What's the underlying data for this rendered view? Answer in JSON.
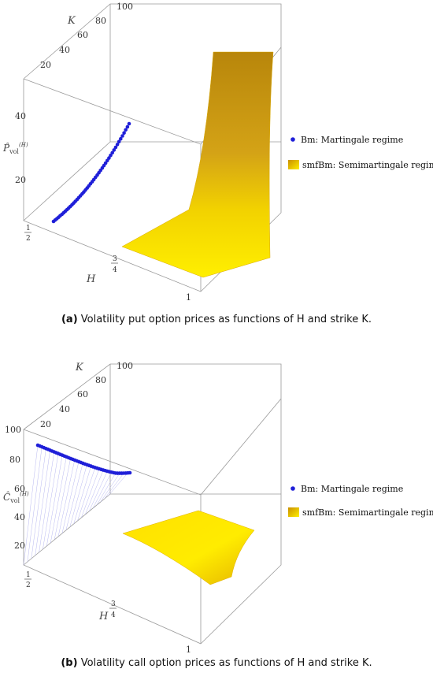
{
  "legend": {
    "bm": "Bm: Martingale regime",
    "smfbm": "smfBm: Semimartingale regime"
  },
  "colors": {
    "bm": "#1f1fd8",
    "smfbm_top": "#c98f00",
    "smfbm_bottom": "#ffef00",
    "frame": "#9a9a9a"
  },
  "chart_data": [
    {
      "panel": "a",
      "type": "scatter",
      "kind": "3d-surface-and-curve",
      "axes": {
        "H": {
          "label": "H",
          "ticks": [
            "1/2",
            "3/4",
            "1"
          ]
        },
        "K": {
          "label": "K",
          "ticks": [
            "20",
            "40",
            "60",
            "80",
            "100"
          ]
        },
        "Z": {
          "label": "P̂vol(H)",
          "ticks": [
            "20",
            "40"
          ]
        }
      },
      "series": [
        {
          "name": "Bm: Martingale regime",
          "H": 0.5,
          "K_range": [
            0,
            100
          ],
          "value_range": [
            2,
            38
          ],
          "trend": "increasing in K"
        },
        {
          "name": "smfBm: Semimartingale regime",
          "H_range": [
            0.625,
            1
          ],
          "K_range": [
            0,
            100
          ],
          "trend": "increasing in K"
        }
      ],
      "caption": {
        "tag": "(a)",
        "text": "Volatility put option prices as functions of H and strike K."
      }
    },
    {
      "panel": "b",
      "type": "scatter",
      "kind": "3d-surface-and-curve",
      "axes": {
        "H": {
          "label": "H",
          "ticks": [
            "1/2",
            "3/4",
            "1"
          ]
        },
        "K": {
          "label": "K",
          "ticks": [
            "20",
            "40",
            "60",
            "80",
            "100"
          ]
        },
        "Z": {
          "label": "Ĉvol(H)",
          "ticks": [
            "20",
            "40",
            "60",
            "80",
            "100"
          ]
        }
      },
      "series": [
        {
          "name": "Bm: Martingale regime",
          "H": 0.5,
          "K_range": [
            0,
            100
          ],
          "value_range": [
            95,
            60
          ],
          "trend": "decreasing in K"
        },
        {
          "name": "smfBm: Semimartingale regime",
          "H_range": [
            0.625,
            1
          ],
          "K_range": [
            0,
            100
          ],
          "trend": "decreasing in K, near zero"
        }
      ],
      "caption": {
        "tag": "(b)",
        "text": "Volatility call option prices as functions of H and strike K."
      }
    }
  ]
}
